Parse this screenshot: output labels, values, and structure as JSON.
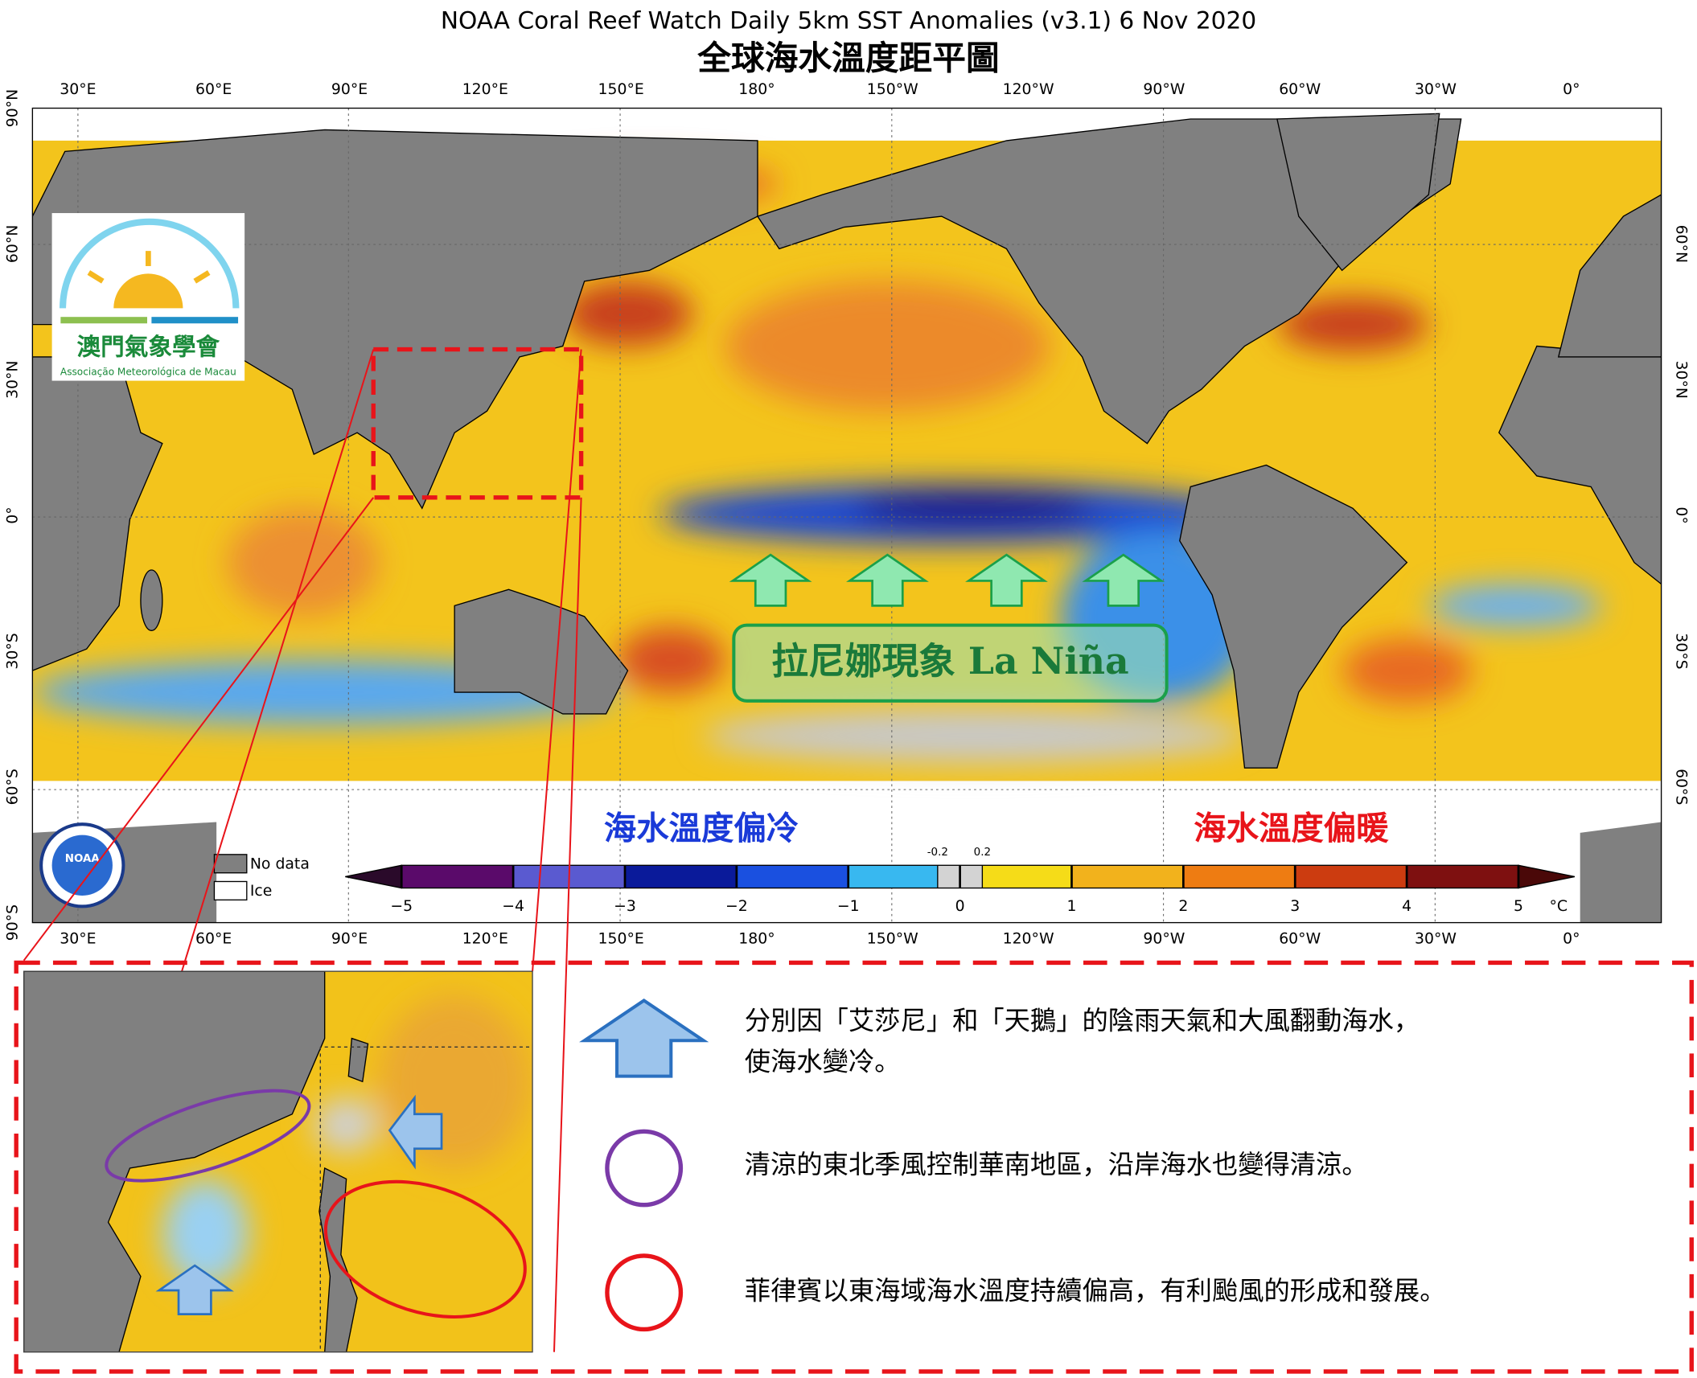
{
  "header": {
    "title": "NOAA Coral Reef Watch Daily 5km SST Anomalies  (v3.1)   6 Nov 2020",
    "subtitle": "全球海水溫度距平圖"
  },
  "logo": {
    "name_zh": "澳門氣象學會",
    "name_pt": "Associação Meteorológica de Macau",
    "noaa": "NOAA"
  },
  "map": {
    "lon_labels": [
      "30°E",
      "60°E",
      "90°E",
      "120°E",
      "150°E",
      "180°",
      "150°W",
      "120°W",
      "90°W",
      "60°W",
      "30°W",
      "0°"
    ],
    "lat_labels": [
      "90°N",
      "60°N",
      "30°N",
      "0°",
      "30°S",
      "60°S",
      "90°S"
    ],
    "annotation": "拉尼娜現象 La Niña"
  },
  "legend": {
    "no_data": "No data",
    "ice": "Ice",
    "cold_label": "海水溫度偏冷",
    "warm_label": "海水溫度偏暖"
  },
  "colorbar": {
    "ticks": [
      {
        "value": -5,
        "label": "−5"
      },
      {
        "value": -4,
        "label": "−4"
      },
      {
        "value": -3,
        "label": "−3"
      },
      {
        "value": -2,
        "label": "−2"
      },
      {
        "value": -1,
        "label": "−1"
      },
      0,
      1,
      2,
      3,
      4,
      5
    ],
    "minor_ticks": [
      -0.2,
      0.2
    ],
    "unit": "°C",
    "bounds": [
      -5,
      -4,
      -3,
      -2,
      -1,
      -0.2,
      0.2,
      1,
      2,
      3,
      4,
      5
    ],
    "colors": [
      "#5a0a6a",
      "#5a5ad0",
      "#0a1a9a",
      "#1a50e0",
      "#38b8f0",
      "#d3d3d3",
      "#f5dc18",
      "#f2b21c",
      "#ee7c12",
      "#cc3c10",
      "#7e1010"
    ]
  },
  "notes": {
    "items": [
      {
        "lines": [
          "分別因「艾莎尼」和「天鵝」的陰雨天氣和大風翻動海水，",
          "使海水變冷。"
        ]
      },
      {
        "lines": [
          "清涼的東北季風控制華南地區，沿岸海水也變得清涼。"
        ]
      },
      {
        "lines": [
          "菲律賓以東海域海水溫度持續偏高，有利颱風的形成和發展。"
        ]
      }
    ]
  }
}
